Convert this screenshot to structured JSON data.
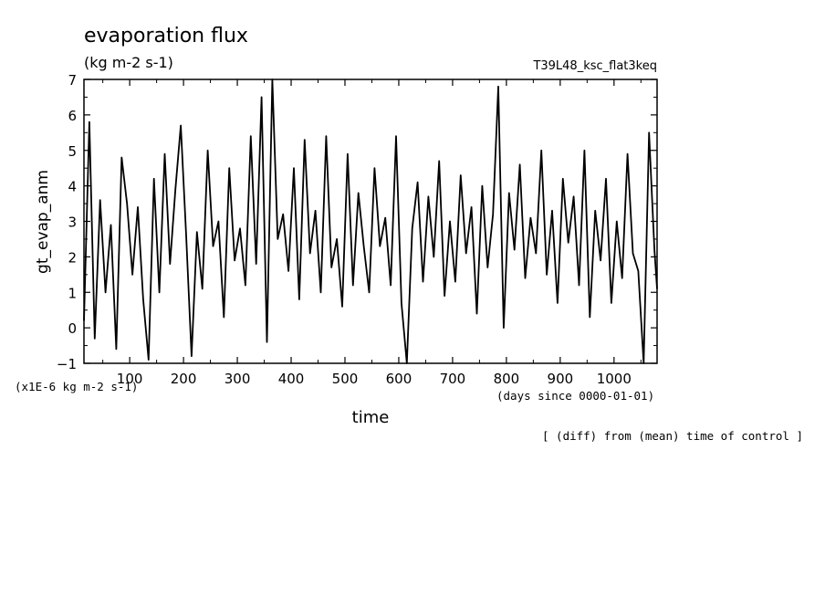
{
  "chart_data": {
    "type": "line",
    "title": "evaporation flux",
    "units": "(kg m-2 s-1)",
    "experiment": "T39L48_ksc_flat3keq",
    "ylabel": "gt_evap_anm",
    "xlabel": "time",
    "x_unit_label": "(days since 0000-01-01)",
    "y_scale_label": "(x1E-6 kg m-2 s-1)",
    "footnote": "[ (diff) from (mean) time of control ]",
    "xlim": [
      15,
      1080
    ],
    "ylim": [
      -1,
      7
    ],
    "x_ticks": [
      100,
      200,
      300,
      400,
      500,
      600,
      700,
      800,
      900,
      1000
    ],
    "y_ticks": [
      -1,
      0,
      1,
      2,
      3,
      4,
      5,
      6,
      7
    ],
    "grid": false,
    "series": [
      {
        "x": [
          15,
          25,
          35,
          45,
          55,
          65,
          75,
          85,
          95,
          105,
          115,
          125,
          135,
          145,
          155,
          165,
          175,
          185,
          195,
          205,
          215,
          225,
          235,
          245,
          255,
          265,
          275,
          285,
          295,
          305,
          315,
          325,
          335,
          345,
          355,
          365,
          375,
          385,
          395,
          405,
          415,
          425,
          435,
          445,
          455,
          465,
          475,
          485,
          495,
          505,
          515,
          525,
          535,
          545,
          555,
          565,
          575,
          585,
          595,
          605,
          615,
          625,
          635,
          645,
          655,
          665,
          675,
          685,
          695,
          705,
          715,
          725,
          735,
          745,
          755,
          765,
          775,
          785,
          795,
          805,
          815,
          825,
          835,
          845,
          855,
          865,
          875,
          885,
          895,
          905,
          915,
          925,
          935,
          945,
          955,
          965,
          975,
          985,
          995,
          1005,
          1015,
          1025,
          1035,
          1045,
          1055,
          1065,
          1075,
          1080
        ],
        "y": [
          0.2,
          5.8,
          -0.3,
          3.6,
          1.0,
          2.9,
          -0.6,
          4.8,
          3.5,
          1.5,
          3.4,
          0.8,
          -0.9,
          4.2,
          1.0,
          4.9,
          1.8,
          3.9,
          5.7,
          2.6,
          -0.8,
          2.7,
          1.1,
          5.0,
          2.3,
          3.0,
          0.3,
          4.5,
          1.9,
          2.8,
          1.2,
          5.4,
          1.8,
          6.5,
          -0.4,
          7.0,
          2.5,
          3.2,
          1.6,
          4.5,
          0.8,
          5.3,
          2.1,
          3.3,
          1.0,
          5.4,
          1.7,
          2.5,
          0.6,
          4.9,
          1.2,
          3.8,
          2.3,
          1.0,
          4.5,
          2.3,
          3.1,
          1.2,
          5.4,
          0.7,
          -1.0,
          2.8,
          4.1,
          1.3,
          3.7,
          2.0,
          4.7,
          0.9,
          3.0,
          1.3,
          4.3,
          2.1,
          3.4,
          0.4,
          4.0,
          1.7,
          3.2,
          6.8,
          0.0,
          3.8,
          2.2,
          4.6,
          1.4,
          3.1,
          2.1,
          5.0,
          1.5,
          3.3,
          0.7,
          4.2,
          2.4,
          3.7,
          1.2,
          5.0,
          0.3,
          3.3,
          1.9,
          4.2,
          0.7,
          3.0,
          1.4,
          4.9,
          2.1,
          1.6,
          -1.0,
          5.5,
          2.2,
          1.1
        ]
      }
    ]
  }
}
